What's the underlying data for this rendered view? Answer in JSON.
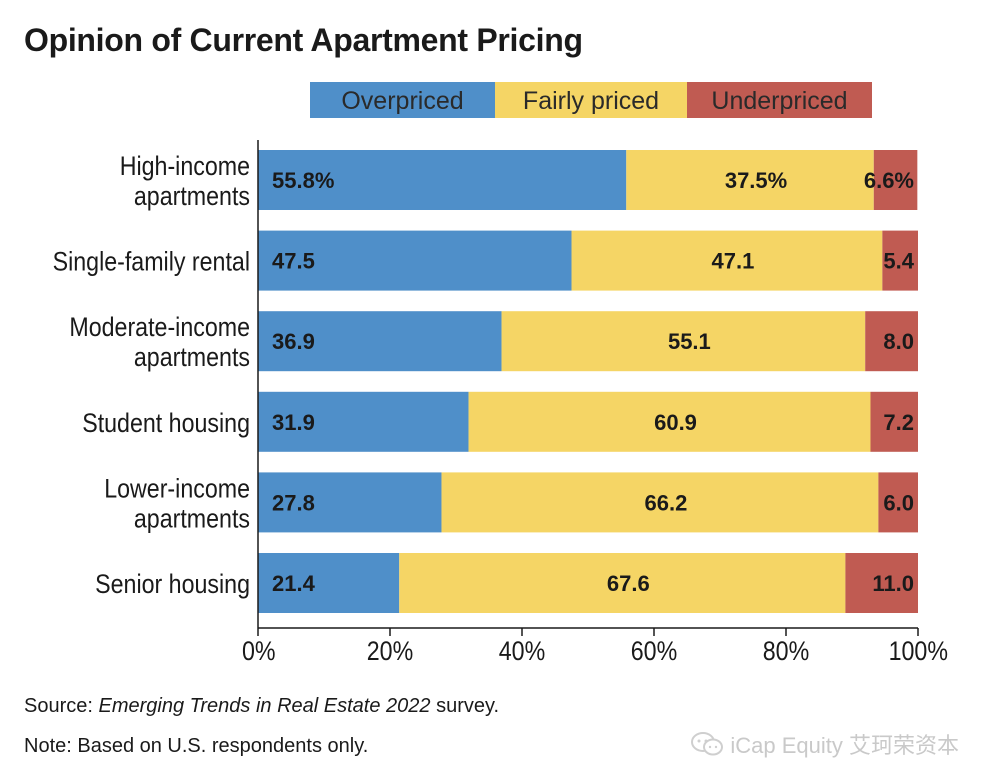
{
  "title": "Opinion of Current Apartment Pricing",
  "source": {
    "prefix": "Source: ",
    "italic": "Emerging Trends in Real Estate 2022",
    "suffix": " survey."
  },
  "note": "Note: Based on U.S. respondents only.",
  "watermark": "iCap Equity 艾珂荣资本",
  "colors": {
    "overpriced": "#4f8fc9",
    "fairly": "#f5d565",
    "underpriced": "#c05b52"
  },
  "chart_data": {
    "type": "bar",
    "orientation": "horizontal",
    "stacked": true,
    "title": "Opinion of Current Apartment Pricing",
    "categories": [
      [
        "High-income",
        "apartments"
      ],
      [
        "Single-family rental"
      ],
      [
        "Moderate-income",
        "apartments"
      ],
      [
        "Student housing"
      ],
      [
        "Lower-income",
        "apartments"
      ],
      [
        "Senior housing"
      ]
    ],
    "series": [
      {
        "name": "Overpriced",
        "color": "#4f8fc9",
        "values": [
          55.8,
          47.5,
          36.9,
          31.9,
          27.8,
          21.4
        ],
        "labels": [
          "55.8%",
          "47.5",
          "36.9",
          "31.9",
          "27.8",
          "21.4"
        ]
      },
      {
        "name": "Fairly priced",
        "color": "#f5d565",
        "values": [
          37.5,
          47.1,
          55.1,
          60.9,
          66.2,
          67.6
        ],
        "labels": [
          "37.5%",
          "47.1",
          "55.1",
          "60.9",
          "66.2",
          "67.6"
        ]
      },
      {
        "name": "Underpriced",
        "color": "#c05b52",
        "values": [
          6.6,
          5.4,
          8.0,
          7.2,
          6.0,
          11.0
        ],
        "labels": [
          "6.6%",
          "5.4",
          "8.0",
          "7.2",
          "6.0",
          "11.0"
        ]
      }
    ],
    "xlim": [
      0,
      100
    ],
    "xticks": [
      0,
      20,
      40,
      60,
      80,
      100
    ],
    "xtick_labels": [
      "0%",
      "20%",
      "40%",
      "60%",
      "80%",
      "100%"
    ],
    "legend_position": "top",
    "grid": false
  }
}
